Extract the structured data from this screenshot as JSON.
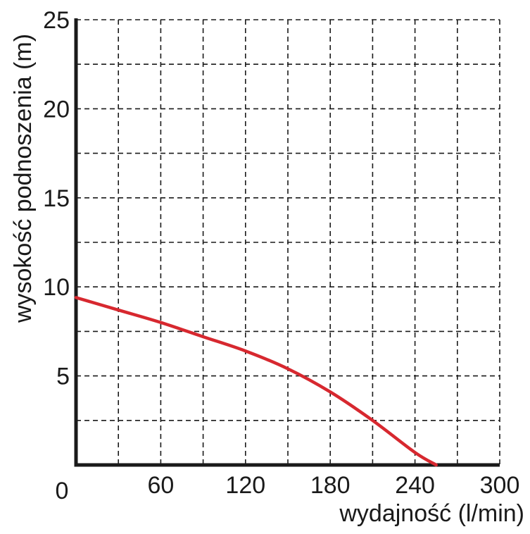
{
  "chart_data": {
    "type": "line",
    "xlabel": "wydajność (l/min)",
    "ylabel": "wysokość podnoszenia (m)",
    "xlim": [
      0,
      300
    ],
    "ylim": [
      0,
      25
    ],
    "x_ticks": [
      0,
      60,
      120,
      180,
      240,
      300
    ],
    "y_ticks": [
      5,
      10,
      15,
      20,
      25
    ],
    "x_gridlines": [
      30,
      60,
      90,
      120,
      150,
      180,
      210,
      240,
      270,
      300
    ],
    "y_gridlines": [
      2.5,
      5,
      7.5,
      10,
      12.5,
      15,
      17.5,
      20,
      22.5,
      25
    ],
    "grid": "dashed",
    "series": [
      {
        "color": "#d7282f",
        "x": [
          0,
          30,
          60,
          90,
          120,
          150,
          180,
          210,
          240,
          255
        ],
        "y": [
          9.4,
          8.7,
          8.0,
          7.2,
          6.4,
          5.4,
          4.1,
          2.5,
          0.7,
          0
        ]
      }
    ]
  }
}
